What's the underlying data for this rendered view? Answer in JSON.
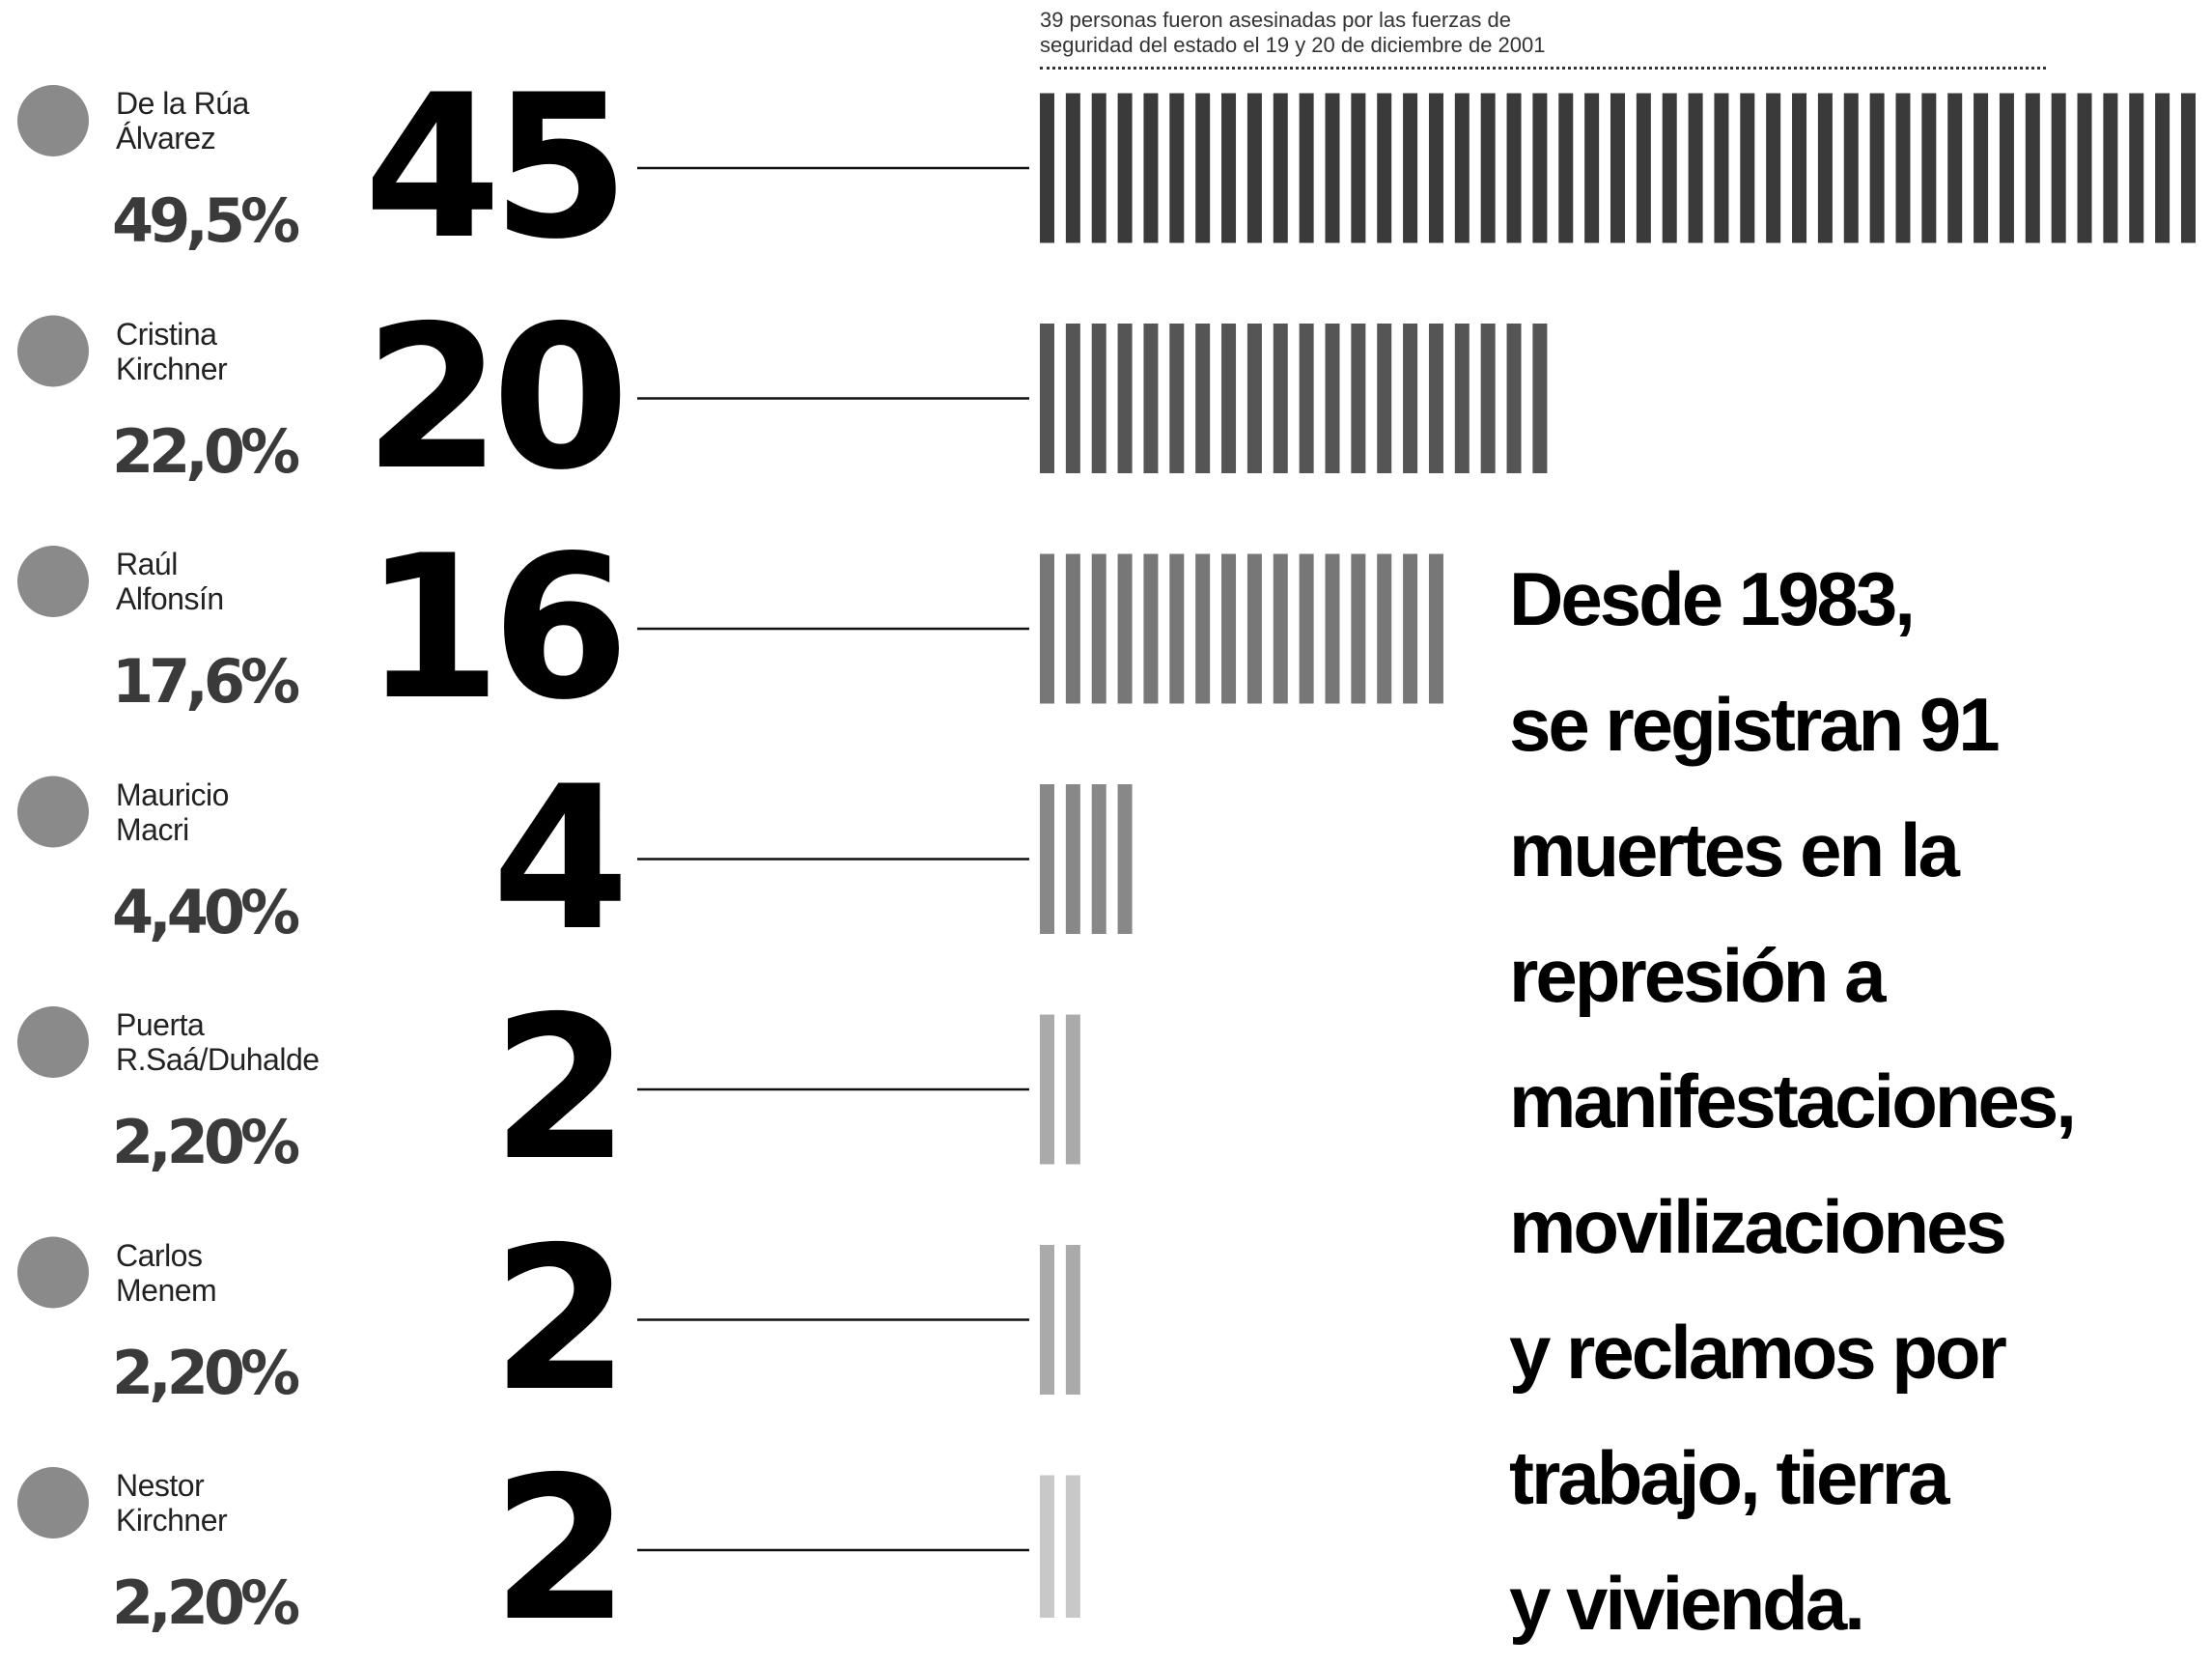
{
  "chart_data": {
    "type": "bar",
    "categories": [
      "De la Rúa\nÁlvarez",
      "Cristina\nKirchner",
      "Raúl\nAlfonsín",
      "Mauricio\nMacri",
      "Puerta\nR.Saá/Duhalde",
      "Carlos\nMenem",
      "Nestor\nKirchner"
    ],
    "values": [
      45,
      20,
      16,
      4,
      2,
      2,
      2
    ],
    "colors": [
      "#3a3a3a",
      "#555555",
      "#777777",
      "#888888",
      "#aaaaaa",
      "#aaaaaa",
      "#c8c8c8"
    ],
    "vote_share": {
      "values": [
        49.5,
        22.0,
        17.6,
        4.4,
        2.2,
        2.2,
        2.2
      ],
      "value_labels": [
        "49,5%",
        "22,0%",
        "17,6%",
        "4,40%",
        "2,20%",
        "2,20%",
        "2,20%"
      ]
    },
    "annotation": "39 personas fueron asesinadas por las fuerzas de\nseguridad del estado el 19 y 20 de diciembre de 2001",
    "text": "Desde 1983,\nse registran 91\nmuertes en la\nrepresión a\nmanifestaciones,\nmovilizaciones\ny reclamos por\ntrabajo, tierra\ny vivienda."
  }
}
